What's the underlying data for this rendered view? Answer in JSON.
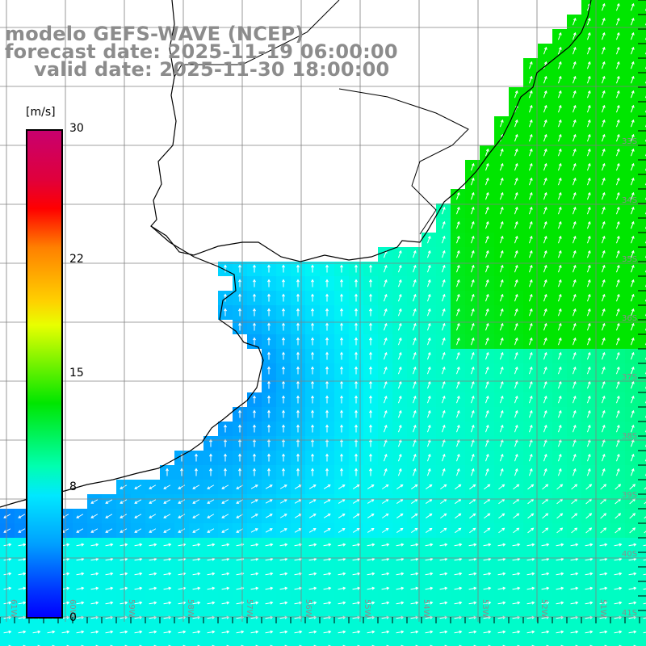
{
  "title": {
    "model": "modelo GEFS-WAVE (NCEP)",
    "forecast": "forecast date: 2025-11-19 06:00:00",
    "valid": "valid date: 2025-11-30 18:00:00"
  },
  "colorbar": {
    "unit": "[m/s]",
    "ticks": [
      {
        "value": 30,
        "label": "30"
      },
      {
        "value": 22,
        "label": "22"
      },
      {
        "value": 15,
        "label": "15"
      },
      {
        "value": 8,
        "label": "8"
      },
      {
        "value": 0,
        "label": "0"
      }
    ],
    "range": [
      0,
      30
    ]
  },
  "map": {
    "lat_labels": [
      "33S",
      "34S",
      "35S",
      "36S",
      "37S",
      "38S",
      "39S",
      "40S",
      "41S"
    ],
    "lon_labels": [
      "61W",
      "60W",
      "59W",
      "58W",
      "57W",
      "56W",
      "55W",
      "54W",
      "53W",
      "52W",
      "51W"
    ],
    "colors": {
      "land": "#ffffff",
      "grid": "#808080",
      "coast": "#000000",
      "arrow": "#ffffff",
      "label": "#8c8c8c"
    }
  }
}
